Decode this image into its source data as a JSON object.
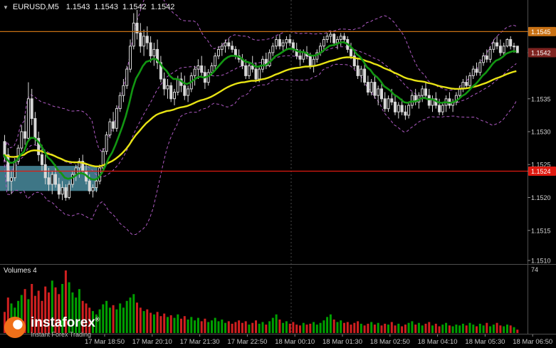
{
  "header": {
    "menu_icon": "▼",
    "symbol": "EURUSD,M5",
    "ohlc": [
      "1.1543",
      "1.1543",
      "1.1542",
      "1.1542"
    ]
  },
  "price_axis": {
    "labels": [
      {
        "text": "1.1545",
        "price": 1.15452,
        "type": "badge",
        "color": "#C87114"
      },
      {
        "text": "1.1542",
        "price": 1.1542,
        "type": "badge",
        "color": "#7E2320"
      },
      {
        "text": "1.1535",
        "price": 1.1535,
        "type": "plain"
      },
      {
        "text": "1.1530",
        "price": 1.153,
        "type": "plain"
      },
      {
        "text": "1.1525",
        "price": 1.1525,
        "type": "plain"
      },
      {
        "text": "1.1524",
        "price": 1.1524,
        "type": "badge",
        "color": "#E01A10"
      },
      {
        "text": "1.1520",
        "price": 1.152,
        "type": "plain"
      },
      {
        "text": "1.1515",
        "price": 1.1515,
        "type": "plain"
      },
      {
        "text": "1.1510",
        "price": 1.151,
        "type": "plain"
      }
    ]
  },
  "volume_pane": {
    "title": "Volumes 4",
    "max_label": "74",
    "max_value": 74
  },
  "watermark": {
    "brand": "instaforex",
    "registered": "®",
    "tagline": "Instant Forex Trading"
  },
  "colors": {
    "background": "#000000",
    "candle_line": "#D8D8D8",
    "bull_fill": "#000000",
    "bear_fill": "#D8D8D8",
    "ma_fast": "#129612",
    "ma_slow": "#E8E414",
    "bollinger": "#AE5AC3",
    "volume_up": "#00A000",
    "volume_down": "#D02020",
    "resistance_line": "#C87114",
    "support_line": "#E01A10",
    "zone_fill": "#417C8D",
    "axis_text": "#D4D4D4",
    "separator": "#4F4F4F"
  },
  "chart_data": {
    "type": "candlestick",
    "symbol": "EURUSD",
    "timeframe": "M5",
    "title": "EURUSD,M5 1.1543 1.1543 1.1542 1.1542",
    "price_base": 1.15,
    "price_unit": 0.0001,
    "y_range": [
      1.151,
      1.155
    ],
    "x_labels": [
      "17 Mar 18:50",
      "17 Mar 20:10",
      "17 Mar 21:30",
      "17 Mar 22:50",
      "18 Mar 00:10",
      "18 Mar 01:30",
      "18 Mar 02:50",
      "18 Mar 04:10",
      "18 Mar 05:30",
      "18 Mar 06:50"
    ],
    "levels": [
      {
        "label": "1.1545",
        "price": 1.15452,
        "color": "#C87114",
        "role": "resistance"
      },
      {
        "label": "1.1524",
        "price": 1.1524,
        "color": "#E01A10",
        "role": "support"
      }
    ],
    "zone": {
      "price_top": 1.15248,
      "price_bottom": 1.1521,
      "x_end_fraction": 0.185,
      "color": "#417C8D"
    },
    "day_separator_fraction": 0.552,
    "indicators": {
      "ma_fast": {
        "type": "ema",
        "period": 10,
        "color": "#129612",
        "width": 2.6
      },
      "ma_slow": {
        "type": "ema",
        "period": 45,
        "color": "#E8E414",
        "width": 2.4
      },
      "bollinger": {
        "period": 20,
        "deviation": 2,
        "color": "#AE5AC3",
        "width": 1
      }
    },
    "candles": [
      [
        28.5,
        29.5,
        25.5,
        26.5
      ],
      [
        26.5,
        27.5,
        21.0,
        22.5
      ],
      [
        22.5,
        24.0,
        20.5,
        23.0
      ],
      [
        23.0,
        26.0,
        22.5,
        25.5
      ],
      [
        25.5,
        28.0,
        25.0,
        27.5
      ],
      [
        27.5,
        31.0,
        27.0,
        30.0
      ],
      [
        30.0,
        32.5,
        28.0,
        29.0
      ],
      [
        29.0,
        37.5,
        28.5,
        35.0
      ],
      [
        35.0,
        36.5,
        31.0,
        32.0
      ],
      [
        32.0,
        33.0,
        28.0,
        29.0
      ],
      [
        29.0,
        30.0,
        25.5,
        26.5
      ],
      [
        26.5,
        28.0,
        24.0,
        25.0
      ],
      [
        25.0,
        26.5,
        22.0,
        23.0
      ],
      [
        23.0,
        24.5,
        21.0,
        22.0
      ],
      [
        22.0,
        24.0,
        20.5,
        23.5
      ],
      [
        23.5,
        25.0,
        21.5,
        22.0
      ],
      [
        22.0,
        23.0,
        19.8,
        20.5
      ],
      [
        20.5,
        22.5,
        19.6,
        21.5
      ],
      [
        21.5,
        22.0,
        19.5,
        20.0
      ],
      [
        20.0,
        22.5,
        19.7,
        22.0
      ],
      [
        22.0,
        24.0,
        21.5,
        23.5
      ],
      [
        23.5,
        25.0,
        22.5,
        24.5
      ],
      [
        24.5,
        26.0,
        23.0,
        25.5
      ],
      [
        25.5,
        26.5,
        23.5,
        24.0
      ],
      [
        24.0,
        25.0,
        22.0,
        22.5
      ],
      [
        22.5,
        23.5,
        20.5,
        21.0
      ],
      [
        21.0,
        22.0,
        20.0,
        21.5
      ],
      [
        21.5,
        23.0,
        20.8,
        22.5
      ],
      [
        22.5,
        25.0,
        22.0,
        24.5
      ],
      [
        24.5,
        27.5,
        24.0,
        27.0
      ],
      [
        27.0,
        30.0,
        26.5,
        29.5
      ],
      [
        29.5,
        32.0,
        29.0,
        31.5
      ],
      [
        31.5,
        33.0,
        30.0,
        30.5
      ],
      [
        30.5,
        34.0,
        30.0,
        33.5
      ],
      [
        33.5,
        36.0,
        33.0,
        35.5
      ],
      [
        35.5,
        38.0,
        34.5,
        37.0
      ],
      [
        37.0,
        40.0,
        36.5,
        39.5
      ],
      [
        39.5,
        44.0,
        39.0,
        43.0
      ],
      [
        43.0,
        48.0,
        42.5,
        46.5
      ],
      [
        46.5,
        48.5,
        44.0,
        45.0
      ],
      [
        45.0,
        46.5,
        42.0,
        43.0
      ],
      [
        43.0,
        45.5,
        41.5,
        44.5
      ],
      [
        44.5,
        46.0,
        42.5,
        43.5
      ],
      [
        43.5,
        44.5,
        40.5,
        41.5
      ],
      [
        41.5,
        43.5,
        40.0,
        42.5
      ],
      [
        42.5,
        44.0,
        39.5,
        40.5
      ],
      [
        40.5,
        41.5,
        37.5,
        38.0
      ],
      [
        38.0,
        39.0,
        35.5,
        36.5
      ],
      [
        36.5,
        38.0,
        35.0,
        37.0
      ],
      [
        37.0,
        37.5,
        34.5,
        35.0
      ],
      [
        35.0,
        36.5,
        34.0,
        36.0
      ],
      [
        36.0,
        38.5,
        35.5,
        38.0
      ],
      [
        38.0,
        39.0,
        36.0,
        37.0
      ],
      [
        37.0,
        38.5,
        34.8,
        35.5
      ],
      [
        35.5,
        37.0,
        34.5,
        36.5
      ],
      [
        36.5,
        39.0,
        36.0,
        38.5
      ],
      [
        38.5,
        40.0,
        37.0,
        39.5
      ],
      [
        39.5,
        41.0,
        38.0,
        40.0
      ],
      [
        40.0,
        41.5,
        38.5,
        39.0
      ],
      [
        39.0,
        40.0,
        36.5,
        37.5
      ],
      [
        37.5,
        39.5,
        37.0,
        39.0
      ],
      [
        39.0,
        40.5,
        38.5,
        40.0
      ],
      [
        40.0,
        42.0,
        39.5,
        41.5
      ],
      [
        41.5,
        43.0,
        41.0,
        42.5
      ],
      [
        42.5,
        43.5,
        41.5,
        43.0
      ],
      [
        43.0,
        44.0,
        42.0,
        43.5
      ],
      [
        43.5,
        44.2,
        42.5,
        43.0
      ],
      [
        43.0,
        43.8,
        42.0,
        42.5
      ],
      [
        42.5,
        43.0,
        41.0,
        41.5
      ],
      [
        41.5,
        42.5,
        40.5,
        41.0
      ],
      [
        41.0,
        41.8,
        39.5,
        40.0
      ],
      [
        40.0,
        41.0,
        38.0,
        38.5
      ],
      [
        38.5,
        40.5,
        38.0,
        40.0
      ],
      [
        40.0,
        41.5,
        39.0,
        39.5
      ],
      [
        39.5,
        40.5,
        37.5,
        38.0
      ],
      [
        38.0,
        40.0,
        37.5,
        39.5
      ],
      [
        39.5,
        41.5,
        39.0,
        41.0
      ],
      [
        41.0,
        42.0,
        39.5,
        40.0
      ],
      [
        40.0,
        42.5,
        39.8,
        42.0
      ],
      [
        42.0,
        43.5,
        41.5,
        43.0
      ],
      [
        43.0,
        44.5,
        42.5,
        44.0
      ],
      [
        44.0,
        44.8,
        42.5,
        43.0
      ],
      [
        43.0,
        44.0,
        42.0,
        43.5
      ],
      [
        43.5,
        44.5,
        42.5,
        44.0
      ],
      [
        44.0,
        44.8,
        43.0,
        43.5
      ],
      [
        43.5,
        44.0,
        42.0,
        42.5
      ],
      [
        42.5,
        43.5,
        41.0,
        41.5
      ],
      [
        41.5,
        42.5,
        40.0,
        41.0
      ],
      [
        41.0,
        42.5,
        40.5,
        42.0
      ],
      [
        42.0,
        43.0,
        41.0,
        41.5
      ],
      [
        41.5,
        42.0,
        39.5,
        40.0
      ],
      [
        40.0,
        41.5,
        39.0,
        41.0
      ],
      [
        41.0,
        42.5,
        40.5,
        42.0
      ],
      [
        42.0,
        43.5,
        41.5,
        43.0
      ],
      [
        43.0,
        44.5,
        42.5,
        44.0
      ],
      [
        44.0,
        45.0,
        43.5,
        44.5
      ],
      [
        44.5,
        45.2,
        43.5,
        44.8
      ],
      [
        44.8,
        45.0,
        43.0,
        43.5
      ],
      [
        43.5,
        44.5,
        42.5,
        44.0
      ],
      [
        44.0,
        45.0,
        43.0,
        44.5
      ],
      [
        44.5,
        45.0,
        43.5,
        44.0
      ],
      [
        44.0,
        44.5,
        42.0,
        42.5
      ],
      [
        42.5,
        43.5,
        41.0,
        41.5
      ],
      [
        41.5,
        42.5,
        39.5,
        40.0
      ],
      [
        40.0,
        41.0,
        38.0,
        38.5
      ],
      [
        38.5,
        40.0,
        37.5,
        39.5
      ],
      [
        39.5,
        40.5,
        37.0,
        37.5
      ],
      [
        37.5,
        38.5,
        35.5,
        36.0
      ],
      [
        36.0,
        38.0,
        35.5,
        37.5
      ],
      [
        37.5,
        38.5,
        35.0,
        35.5
      ],
      [
        35.5,
        37.0,
        34.0,
        36.5
      ],
      [
        36.5,
        37.5,
        34.5,
        35.0
      ],
      [
        35.0,
        36.0,
        33.0,
        33.5
      ],
      [
        33.5,
        35.5,
        33.0,
        35.0
      ],
      [
        35.0,
        36.5,
        34.0,
        34.5
      ],
      [
        34.5,
        35.5,
        32.5,
        33.0
      ],
      [
        33.0,
        34.5,
        32.0,
        34.0
      ],
      [
        34.0,
        35.0,
        32.5,
        33.0
      ],
      [
        33.0,
        34.0,
        31.8,
        32.5
      ],
      [
        32.5,
        34.5,
        32.0,
        34.0
      ],
      [
        34.0,
        36.0,
        33.5,
        35.5
      ],
      [
        35.5,
        36.5,
        34.0,
        34.5
      ],
      [
        34.5,
        36.0,
        33.5,
        35.5
      ],
      [
        35.5,
        37.0,
        34.5,
        36.5
      ],
      [
        36.5,
        37.5,
        35.0,
        35.5
      ],
      [
        35.5,
        36.5,
        33.5,
        34.0
      ],
      [
        34.0,
        35.5,
        33.0,
        35.0
      ],
      [
        35.0,
        36.0,
        33.5,
        34.0
      ],
      [
        34.0,
        35.0,
        32.5,
        33.0
      ],
      [
        33.0,
        34.5,
        32.5,
        34.0
      ],
      [
        34.0,
        35.5,
        33.0,
        35.0
      ],
      [
        35.0,
        36.0,
        33.5,
        34.0
      ],
      [
        34.0,
        35.0,
        33.0,
        34.5
      ],
      [
        34.5,
        36.0,
        34.0,
        35.5
      ],
      [
        35.5,
        37.0,
        35.0,
        36.5
      ],
      [
        36.5,
        38.0,
        36.0,
        37.5
      ],
      [
        37.5,
        38.5,
        36.5,
        37.0
      ],
      [
        37.0,
        39.0,
        36.5,
        38.5
      ],
      [
        38.5,
        40.0,
        38.0,
        39.5
      ],
      [
        39.5,
        40.5,
        38.5,
        39.0
      ],
      [
        39.0,
        41.0,
        38.5,
        40.5
      ],
      [
        40.5,
        42.0,
        40.0,
        41.5
      ],
      [
        41.5,
        42.5,
        40.5,
        41.0
      ],
      [
        41.0,
        43.0,
        40.5,
        42.5
      ],
      [
        42.5,
        44.0,
        42.0,
        43.5
      ],
      [
        43.5,
        44.5,
        42.5,
        43.0
      ],
      [
        43.0,
        44.0,
        41.5,
        42.0
      ],
      [
        42.0,
        43.5,
        41.5,
        43.0
      ],
      [
        43.0,
        44.2,
        42.8,
        44.0
      ],
      [
        44.0,
        44.5,
        42.5,
        43.0
      ],
      [
        43.0,
        43.5,
        42.0,
        43.0
      ],
      [
        43.0,
        43.0,
        42.0,
        42.0
      ]
    ],
    "volumes": [
      25,
      42,
      35,
      30,
      38,
      45,
      52,
      40,
      58,
      44,
      50,
      38,
      55,
      48,
      62,
      54,
      46,
      58,
      74,
      60,
      48,
      42,
      52,
      38,
      35,
      30,
      26,
      22,
      28,
      34,
      38,
      30,
      33,
      28,
      35,
      30,
      38,
      42,
      46,
      36,
      30,
      26,
      28,
      24,
      22,
      25,
      20,
      23,
      19,
      21,
      18,
      22,
      17,
      20,
      16,
      19,
      15,
      18,
      14,
      17,
      13,
      15,
      18,
      14,
      16,
      12,
      14,
      11,
      13,
      15,
      12,
      14,
      10,
      12,
      15,
      11,
      13,
      10,
      14,
      18,
      22,
      16,
      12,
      14,
      11,
      13,
      10,
      9,
      12,
      10,
      11,
      13,
      10,
      12,
      15,
      19,
      22,
      16,
      13,
      15,
      12,
      13,
      10,
      12,
      14,
      11,
      9,
      11,
      13,
      10,
      12,
      9,
      11,
      10,
      13,
      9,
      11,
      8,
      10,
      12,
      14,
      10,
      12,
      9,
      11,
      13,
      9,
      11,
      8,
      10,
      12,
      9,
      8,
      10,
      9,
      11,
      9,
      12,
      10,
      8,
      11,
      9,
      12,
      8,
      10,
      12,
      9,
      8,
      10,
      9,
      7,
      4
    ]
  }
}
